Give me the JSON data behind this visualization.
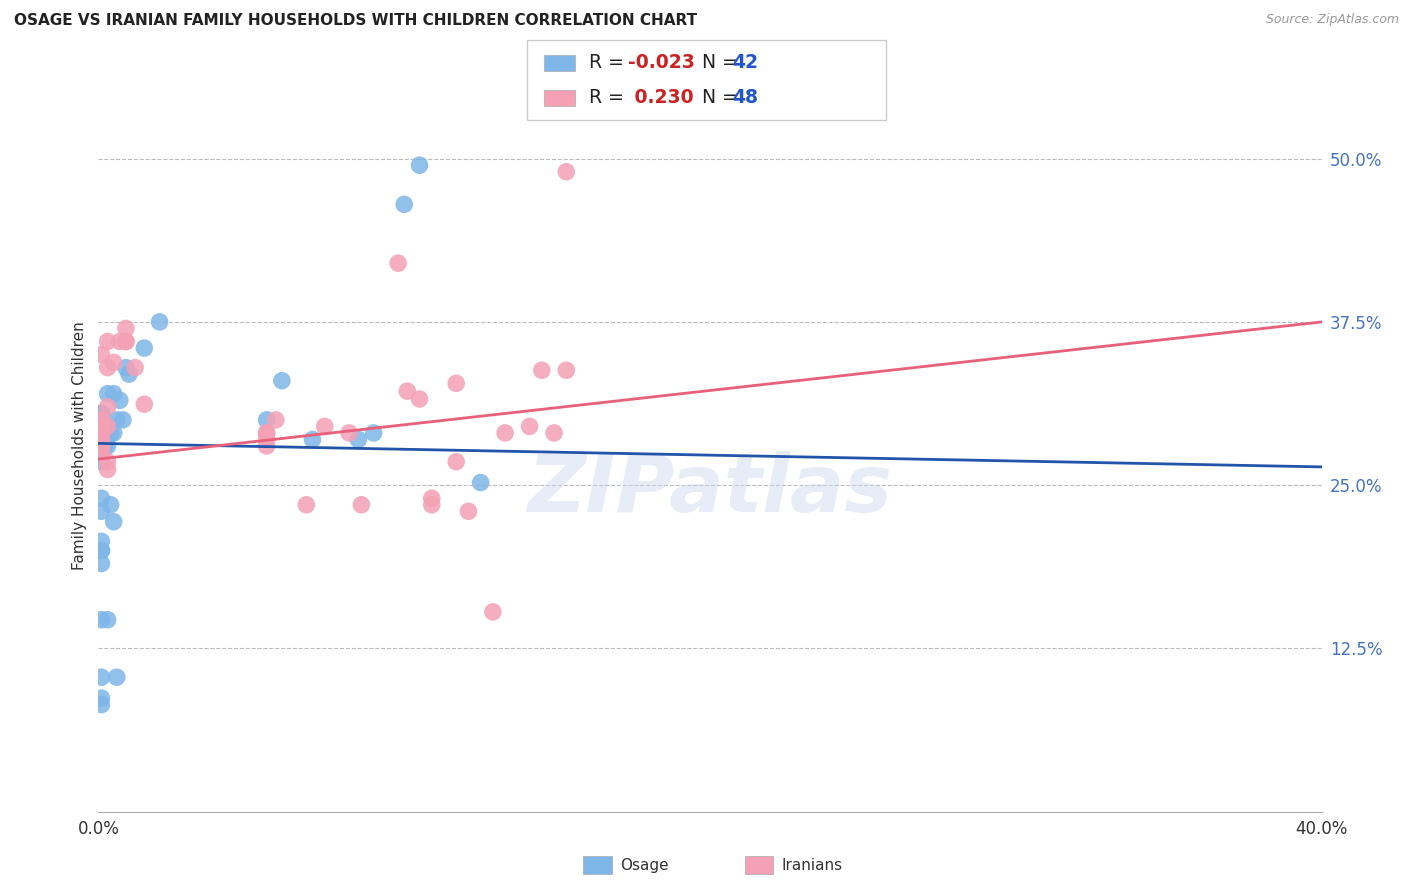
{
  "title": "OSAGE VS IRANIAN FAMILY HOUSEHOLDS WITH CHILDREN CORRELATION CHART",
  "source": "Source: ZipAtlas.com",
  "ylabel": "Family Households with Children",
  "xlim": [
    0.0,
    0.4
  ],
  "ylim": [
    0.0,
    0.56
  ],
  "osage_color": "#7EB6E8",
  "iranian_color": "#F4A0B5",
  "osage_line_color": "#2255AA",
  "iranian_line_color": "#E8607A",
  "legend_osage_R": "-0.023",
  "legend_osage_N": "42",
  "legend_iranian_R": "0.230",
  "legend_iranian_N": "48",
  "watermark": "ZIPatlas",
  "osage_x": [
    0.01,
    0.015,
    0.02,
    0.001,
    0.003,
    0.005,
    0.001,
    0.003,
    0.004,
    0.001,
    0.005,
    0.003,
    0.006,
    0.007,
    0.009,
    0.008,
    0.001,
    0.002,
    0.004,
    0.001,
    0.001,
    0.001,
    0.003,
    0.001,
    0.006,
    0.005,
    0.06,
    0.09,
    0.1,
    0.105,
    0.001,
    0.001,
    0.055,
    0.001,
    0.07,
    0.085,
    0.001,
    0.125,
    0.001,
    0.001,
    0.001,
    0.001
  ],
  "osage_y": [
    0.335,
    0.355,
    0.375,
    0.305,
    0.32,
    0.32,
    0.305,
    0.295,
    0.29,
    0.285,
    0.29,
    0.28,
    0.3,
    0.315,
    0.34,
    0.3,
    0.285,
    0.28,
    0.235,
    0.2,
    0.19,
    0.147,
    0.147,
    0.103,
    0.103,
    0.222,
    0.33,
    0.29,
    0.465,
    0.495,
    0.273,
    0.268,
    0.3,
    0.24,
    0.285,
    0.285,
    0.23,
    0.252,
    0.207,
    0.2,
    0.087,
    0.082
  ],
  "iranian_x": [
    0.001,
    0.003,
    0.003,
    0.001,
    0.003,
    0.005,
    0.007,
    0.009,
    0.001,
    0.001,
    0.001,
    0.003,
    0.001,
    0.001,
    0.001,
    0.001,
    0.001,
    0.001,
    0.003,
    0.003,
    0.009,
    0.009,
    0.012,
    0.015,
    0.055,
    0.055,
    0.055,
    0.055,
    0.058,
    0.068,
    0.074,
    0.082,
    0.086,
    0.098,
    0.101,
    0.105,
    0.109,
    0.109,
    0.117,
    0.117,
    0.121,
    0.129,
    0.133,
    0.141,
    0.145,
    0.149,
    0.153,
    0.153
  ],
  "iranian_y": [
    0.29,
    0.34,
    0.36,
    0.35,
    0.31,
    0.344,
    0.36,
    0.37,
    0.3,
    0.3,
    0.295,
    0.295,
    0.29,
    0.29,
    0.285,
    0.28,
    0.28,
    0.275,
    0.268,
    0.262,
    0.36,
    0.36,
    0.34,
    0.312,
    0.29,
    0.29,
    0.285,
    0.28,
    0.3,
    0.235,
    0.295,
    0.29,
    0.235,
    0.42,
    0.322,
    0.316,
    0.24,
    0.235,
    0.328,
    0.268,
    0.23,
    0.153,
    0.29,
    0.295,
    0.338,
    0.29,
    0.49,
    0.338
  ]
}
